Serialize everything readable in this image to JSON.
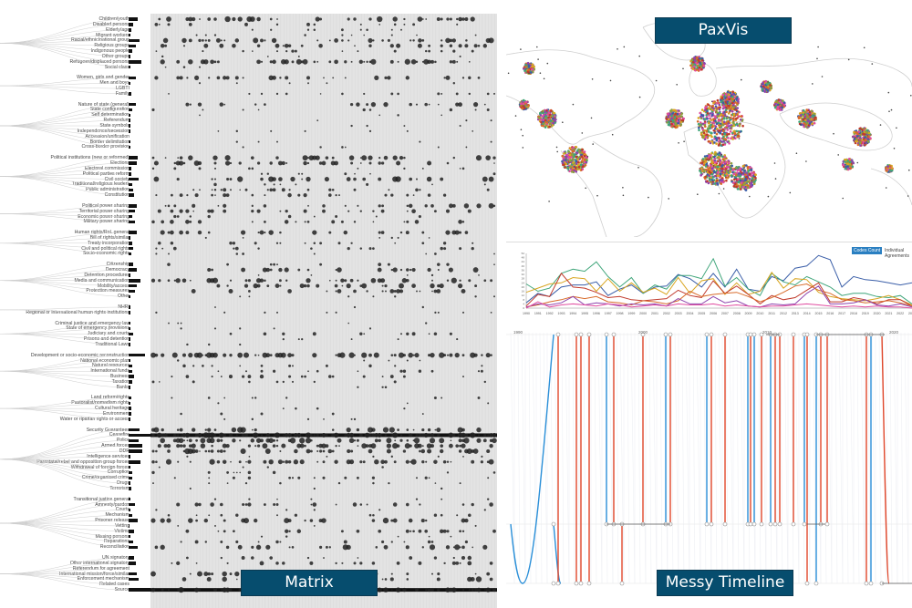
{
  "panels": {
    "paxvis": {
      "title": "PaxVis"
    },
    "matrix": {
      "title": "Matrix"
    },
    "timeline": {
      "title": "Messy Timeline"
    }
  },
  "colors": {
    "badge_bg": "#064d6e",
    "badge_text": "#ffffff",
    "matrix_bg": "#e3e3e3",
    "dot": "#111111",
    "timeline_red": "#e0472b",
    "timeline_blue": "#2a8fd8",
    "series": [
      "#3a5ea8",
      "#3fa57a",
      "#d9a520",
      "#c0392b",
      "#d86b2a",
      "#8e44ad",
      "#e04ca0",
      "#8aa040"
    ]
  },
  "matrix": {
    "categories": [
      {
        "label": "Children/youth",
        "bar": 10
      },
      {
        "label": "Disabled persons",
        "bar": 5
      },
      {
        "label": "Elderly/age",
        "bar": 3
      },
      {
        "label": "Migrant workers",
        "bar": 2
      },
      {
        "label": "Racial/ethnic/national group",
        "bar": 12
      },
      {
        "label": "Religious groups",
        "bar": 8
      },
      {
        "label": "Indigenous people",
        "bar": 4
      },
      {
        "label": "Other groups",
        "bar": 2
      },
      {
        "label": "Refugees/displaced persons",
        "bar": 14
      },
      {
        "label": "Social class",
        "bar": 2
      },
      {
        "label": "",
        "bar": 0
      },
      {
        "label": "Women, girls and gender",
        "bar": 8
      },
      {
        "label": "Men and boys",
        "bar": 2
      },
      {
        "label": "LGBTI",
        "bar": 0
      },
      {
        "label": "Family",
        "bar": 3
      },
      {
        "label": "",
        "bar": 0
      },
      {
        "label": "Nature of state (general)",
        "bar": 8
      },
      {
        "label": "State configuration",
        "bar": 4
      },
      {
        "label": "Self determination",
        "bar": 2
      },
      {
        "label": "Referendum",
        "bar": 2
      },
      {
        "label": "State symbols",
        "bar": 2
      },
      {
        "label": "Independence/secession",
        "bar": 2
      },
      {
        "label": "Accession/unification",
        "bar": 0
      },
      {
        "label": "Border delimitation",
        "bar": 2
      },
      {
        "label": "Cross-border provision",
        "bar": 2
      },
      {
        "label": "",
        "bar": 0
      },
      {
        "label": "Political institutions (new or reformed)",
        "bar": 10
      },
      {
        "label": "Elections",
        "bar": 9
      },
      {
        "label": "Electoral commission",
        "bar": 3
      },
      {
        "label": "Political parties reform",
        "bar": 3
      },
      {
        "label": "Civil society",
        "bar": 11
      },
      {
        "label": "Traditional/religious leaders",
        "bar": 4
      },
      {
        "label": "Public administration",
        "bar": 5
      },
      {
        "label": "Constitution",
        "bar": 6
      },
      {
        "label": "",
        "bar": 0
      },
      {
        "label": "Political power sharing",
        "bar": 9
      },
      {
        "label": "Territorial power sharing",
        "bar": 7
      },
      {
        "label": "Economic power sharing",
        "bar": 4
      },
      {
        "label": "Military power sharing",
        "bar": 7
      },
      {
        "label": "",
        "bar": 0
      },
      {
        "label": "Human rights/RoL general",
        "bar": 9
      },
      {
        "label": "Bill of rights/similar",
        "bar": 2
      },
      {
        "label": "Treaty incorporation",
        "bar": 4
      },
      {
        "label": "Civil and political rights",
        "bar": 5
      },
      {
        "label": "Socio-economic rights",
        "bar": 3
      },
      {
        "label": "",
        "bar": 0
      },
      {
        "label": "Citizenship",
        "bar": 5
      },
      {
        "label": "Democracy",
        "bar": 9
      },
      {
        "label": "Detention procedures",
        "bar": 2
      },
      {
        "label": "Media and communication",
        "bar": 13
      },
      {
        "label": "Mobility/access",
        "bar": 9
      },
      {
        "label": "Protection measures",
        "bar": 7
      },
      {
        "label": "Other",
        "bar": 2
      },
      {
        "label": "",
        "bar": 0
      },
      {
        "label": "NHRI",
        "bar": 2
      },
      {
        "label": "Regional or international human rights institutions",
        "bar": 2
      },
      {
        "label": "",
        "bar": 0
      },
      {
        "label": "Criminal justice and emergency law",
        "bar": 2
      },
      {
        "label": "State of emergency provisions",
        "bar": 2
      },
      {
        "label": "Judiciary and courts",
        "bar": 5
      },
      {
        "label": "Prisons and detention",
        "bar": 2
      },
      {
        "label": "Traditional Laws",
        "bar": 2
      },
      {
        "label": "",
        "bar": 0
      },
      {
        "label": "Development or socio-economic reconstruction",
        "bar": 18
      },
      {
        "label": "National economic plan",
        "bar": 2
      },
      {
        "label": "Natural resources",
        "bar": 4
      },
      {
        "label": "International funds",
        "bar": 4
      },
      {
        "label": "Business",
        "bar": 6
      },
      {
        "label": "Taxation",
        "bar": 4
      },
      {
        "label": "Banks",
        "bar": 2
      },
      {
        "label": "",
        "bar": 0
      },
      {
        "label": "Land reform/rights",
        "bar": 3
      },
      {
        "label": "Pastoralist/nomadism rights",
        "bar": 2
      },
      {
        "label": "Cultural heritage",
        "bar": 3
      },
      {
        "label": "Environment",
        "bar": 3
      },
      {
        "label": "Water or riparian rights or access",
        "bar": 2
      },
      {
        "label": "",
        "bar": 0
      },
      {
        "label": "Security Guarantees",
        "bar": 12
      },
      {
        "label": "Ceasefire",
        "bar": 24
      },
      {
        "label": "Police",
        "bar": 11
      },
      {
        "label": "Armed forces",
        "bar": 15
      },
      {
        "label": "DDR",
        "bar": 15
      },
      {
        "label": "Intelligence services",
        "bar": 2
      },
      {
        "label": "Parastatal/rebel and opposition group forces",
        "bar": 13
      },
      {
        "label": "Withdrawal of foreign forces",
        "bar": 2
      },
      {
        "label": "Corruption",
        "bar": 4
      },
      {
        "label": "Crime/organised crime",
        "bar": 4
      },
      {
        "label": "Drugs",
        "bar": 2
      },
      {
        "label": "Terrorism",
        "bar": 3
      },
      {
        "label": "",
        "bar": 0
      },
      {
        "label": "Transitional justice general",
        "bar": 2
      },
      {
        "label": "Amnesty/pardon",
        "bar": 7
      },
      {
        "label": "Courts",
        "bar": 2
      },
      {
        "label": "Mechanism",
        "bar": 4
      },
      {
        "label": "Prisoner release",
        "bar": 10
      },
      {
        "label": "Vetting",
        "bar": 1
      },
      {
        "label": "Victims",
        "bar": 6
      },
      {
        "label": "Missing persons",
        "bar": 2
      },
      {
        "label": "Reparations",
        "bar": 5
      },
      {
        "label": "Reconciliation",
        "bar": 10
      },
      {
        "label": "",
        "bar": 0
      },
      {
        "label": "UN signatory",
        "bar": 6
      },
      {
        "label": "Other international signatory",
        "bar": 8
      },
      {
        "label": "Referendum for agreement",
        "bar": 0
      },
      {
        "label": "International mission/force/similar",
        "bar": 9
      },
      {
        "label": "Enforcement mechanism",
        "bar": 11
      },
      {
        "label": "Related cases",
        "bar": 0
      },
      {
        "label": "Source",
        "bar": 30
      }
    ]
  },
  "chart_data": {
    "type": "line",
    "title": "",
    "legend": [
      "Codes Count",
      "Individual Agreements"
    ],
    "x": [
      "1990",
      "1991",
      "1992",
      "1993",
      "1994",
      "1995",
      "1996",
      "1997",
      "1998",
      "1999",
      "2000",
      "2001",
      "2002",
      "2003",
      "2004",
      "2005",
      "2006",
      "2007",
      "2008",
      "2009",
      "2010",
      "2011",
      "2012",
      "2013",
      "2014",
      "2015",
      "2016",
      "2017",
      "2018",
      "2019",
      "2020",
      "2021",
      "2022",
      "2023"
    ],
    "series": [
      {
        "name": "blue",
        "values": [
          5,
          14,
          11,
          20,
          22,
          22,
          25,
          12,
          18,
          22,
          14,
          20,
          21,
          32,
          28,
          20,
          33,
          20,
          37,
          18,
          16,
          30,
          26,
          38,
          40,
          50,
          46,
          20,
          30,
          27,
          26,
          24,
          22,
          24
        ]
      },
      {
        "name": "green",
        "values": [
          23,
          16,
          19,
          33,
          37,
          35,
          44,
          30,
          20,
          29,
          14,
          22,
          18,
          31,
          31,
          28,
          47,
          21,
          29,
          18,
          12,
          33,
          25,
          22,
          30,
          25,
          20,
          12,
          14,
          14,
          11,
          10,
          12,
          4
        ]
      },
      {
        "name": "yellow",
        "values": [
          15,
          19,
          23,
          24,
          29,
          28,
          16,
          28,
          16,
          24,
          15,
          19,
          13,
          29,
          14,
          26,
          28,
          13,
          24,
          13,
          16,
          34,
          19,
          28,
          27,
          15,
          11,
          9,
          8,
          7,
          9,
          12,
          8,
          3
        ]
      },
      {
        "name": "red",
        "values": [
          2,
          13,
          11,
          33,
          20,
          19,
          15,
          10,
          11,
          8,
          7,
          8,
          9,
          17,
          12,
          10,
          26,
          14,
          21,
          13,
          4,
          12,
          8,
          10,
          17,
          24,
          6,
          6,
          10,
          8,
          4,
          8,
          8,
          2
        ]
      },
      {
        "name": "orange",
        "values": [
          1,
          3,
          6,
          8,
          11,
          9,
          11,
          6,
          5,
          3,
          7,
          6,
          4,
          7,
          16,
          11,
          13,
          14,
          15,
          11,
          6,
          10,
          15,
          21,
          23,
          17,
          14,
          8,
          7,
          5,
          6,
          7,
          5,
          2
        ]
      },
      {
        "name": "purple",
        "values": [
          1,
          4,
          3,
          5,
          11,
          3,
          5,
          4,
          2,
          4,
          3,
          4,
          2,
          9,
          4,
          4,
          11,
          5,
          7,
          2,
          1,
          4,
          3,
          4,
          14,
          21,
          4,
          4,
          5,
          8,
          3,
          2,
          4,
          1
        ]
      },
      {
        "name": "pink",
        "values": [
          0,
          6,
          1,
          3,
          4,
          3,
          2,
          4,
          3,
          1,
          2,
          3,
          2,
          4,
          3,
          3,
          4,
          2,
          3,
          2,
          1,
          2,
          2,
          3,
          4,
          3,
          2,
          1,
          2,
          1,
          2,
          1,
          1,
          0
        ]
      }
    ],
    "ylim": [
      0,
      52
    ],
    "grid": false,
    "legend_position": "top-right"
  },
  "timeline": {
    "years": [
      "1990",
      "2000",
      "2010",
      "2020"
    ]
  }
}
